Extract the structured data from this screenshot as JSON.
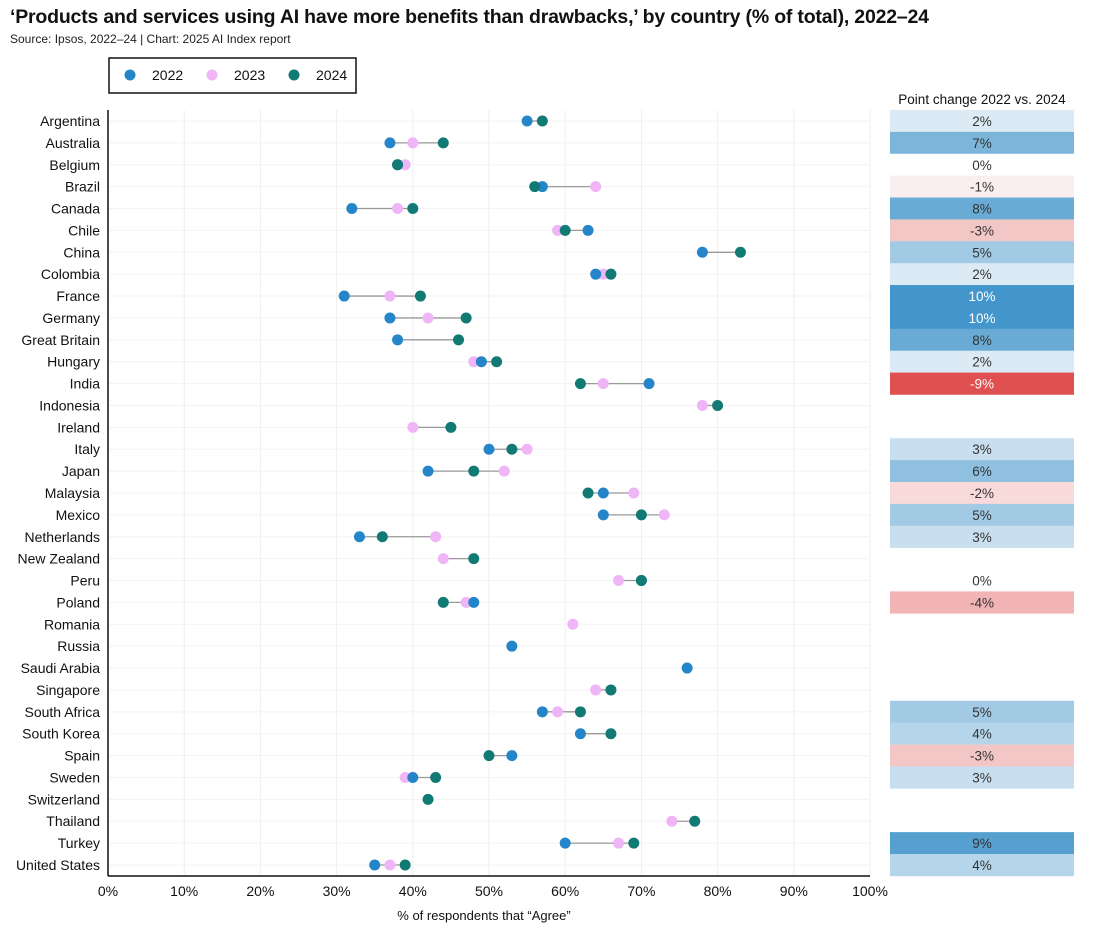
{
  "title": "‘Products and services using AI have more benefits than drawbacks,’ by country (% of total), 2022–24",
  "source": "Source: Ipsos, 2022–24 | Chart: 2025 AI Index report",
  "chart_data": {
    "type": "dumbbell",
    "xlabel": "% of respondents that “Agree”",
    "xlim": [
      0,
      100
    ],
    "xticks": [
      "0%",
      "10%",
      "20%",
      "30%",
      "40%",
      "50%",
      "60%",
      "70%",
      "80%",
      "90%",
      "100%"
    ],
    "grid": true,
    "legend": {
      "placement": "top-left",
      "entries": [
        "2022",
        "2023",
        "2024"
      ]
    },
    "colors": {
      "2022": "#2486c8",
      "2023": "#efb5f7",
      "2024": "#127a74",
      "connector": "#999999",
      "positive": "#4396cb",
      "negative": "#e05050"
    },
    "table_header": "Point change 2022 vs. 2024",
    "countries": [
      "Argentina",
      "Australia",
      "Belgium",
      "Brazil",
      "Canada",
      "Chile",
      "China",
      "Colombia",
      "France",
      "Germany",
      "Great Britain",
      "Hungary",
      "India",
      "Indonesia",
      "Ireland",
      "Italy",
      "Japan",
      "Malaysia",
      "Mexico",
      "Netherlands",
      "New Zealand",
      "Peru",
      "Poland",
      "Romania",
      "Russia",
      "Saudi Arabia",
      "Singapore",
      "South Africa",
      "South Korea",
      "Spain",
      "Sweden",
      "Switzerland",
      "Thailand",
      "Turkey",
      "United States"
    ],
    "series": [
      {
        "name": "2022",
        "values": [
          55,
          37,
          38,
          57,
          32,
          63,
          78,
          64,
          31,
          37,
          38,
          49,
          71,
          null,
          null,
          50,
          42,
          65,
          65,
          33,
          null,
          70,
          48,
          null,
          53,
          76,
          null,
          57,
          62,
          53,
          40,
          null,
          null,
          60,
          35
        ]
      },
      {
        "name": "2023",
        "values": [
          null,
          40,
          39,
          64,
          38,
          59,
          null,
          65,
          37,
          42,
          null,
          48,
          65,
          78,
          40,
          55,
          52,
          69,
          73,
          43,
          44,
          67,
          47,
          61,
          null,
          null,
          64,
          59,
          null,
          null,
          39,
          null,
          74,
          67,
          37
        ]
      },
      {
        "name": "2024",
        "values": [
          57,
          44,
          38,
          56,
          40,
          60,
          83,
          66,
          41,
          47,
          46,
          51,
          62,
          80,
          45,
          53,
          48,
          63,
          70,
          36,
          48,
          70,
          44,
          null,
          null,
          null,
          66,
          62,
          66,
          50,
          43,
          42,
          77,
          69,
          39
        ]
      }
    ],
    "point_change": [
      "2%",
      "7%",
      "0%",
      "-1%",
      "8%",
      "-3%",
      "5%",
      "2%",
      "10%",
      "10%",
      "8%",
      "2%",
      "-9%",
      null,
      null,
      "3%",
      "6%",
      "-2%",
      "5%",
      "3%",
      null,
      "0%",
      "-4%",
      null,
      null,
      null,
      null,
      "5%",
      "4%",
      "-3%",
      "3%",
      null,
      null,
      "9%",
      "4%"
    ]
  }
}
